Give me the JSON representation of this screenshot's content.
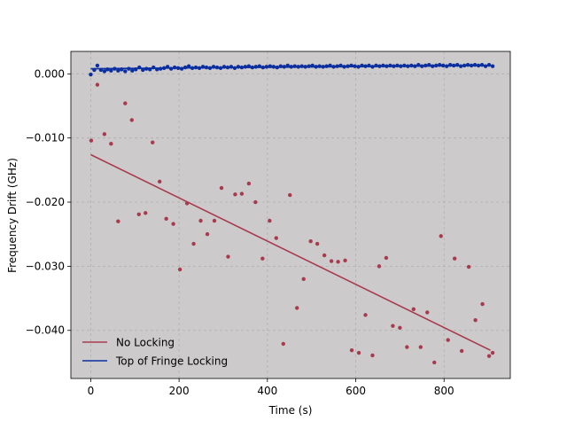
{
  "chart_data": {
    "type": "scatter",
    "title": "",
    "xlabel": "Time (s)",
    "ylabel": "Frequency Drift (GHz)",
    "xlim": [
      -45,
      950
    ],
    "ylim": [
      -0.0475,
      0.0035
    ],
    "x_ticks": [
      0,
      200,
      400,
      600,
      800
    ],
    "x_tick_labels": [
      "0",
      "200",
      "400",
      "600",
      "800"
    ],
    "y_ticks": [
      0.0,
      -0.01,
      -0.02,
      -0.03,
      -0.04
    ],
    "y_tick_labels": [
      "0.000",
      "−0.010",
      "−0.020",
      "−0.030",
      "−0.040"
    ],
    "grid": true,
    "background": "#cdcacb",
    "legend_position": "lower-left",
    "series": [
      {
        "name": "No Locking",
        "color": "#a83a4e",
        "fit": {
          "x": [
            0,
            905
          ],
          "y": [
            -0.0126,
            -0.0431
          ]
        },
        "points": [
          [
            1,
            -0.0104
          ],
          [
            15,
            -0.0017
          ],
          [
            31,
            -0.0094
          ],
          [
            46,
            -0.0109
          ],
          [
            62,
            -0.023
          ],
          [
            78,
            -0.0046
          ],
          [
            93,
            -0.0072
          ],
          [
            109,
            -0.0219
          ],
          [
            124,
            -0.0217
          ],
          [
            140,
            -0.0107
          ],
          [
            156,
            -0.0168
          ],
          [
            171,
            -0.0226
          ],
          [
            187,
            -0.0234
          ],
          [
            202,
            -0.0305
          ],
          [
            218,
            -0.0202
          ],
          [
            233,
            -0.0265
          ],
          [
            249,
            -0.0229
          ],
          [
            264,
            -0.025
          ],
          [
            280,
            -0.0229
          ],
          [
            296,
            -0.0178
          ],
          [
            311,
            -0.0285
          ],
          [
            327,
            -0.0188
          ],
          [
            342,
            -0.0187
          ],
          [
            358,
            -0.0171
          ],
          [
            373,
            -0.02
          ],
          [
            389,
            -0.0288
          ],
          [
            405,
            -0.0229
          ],
          [
            420,
            -0.0256
          ],
          [
            436,
            -0.0421
          ],
          [
            451,
            -0.0189
          ],
          [
            467,
            -0.0365
          ],
          [
            482,
            -0.032
          ],
          [
            498,
            -0.0261
          ],
          [
            513,
            -0.0265
          ],
          [
            529,
            -0.0283
          ],
          [
            545,
            -0.0292
          ],
          [
            560,
            -0.0293
          ],
          [
            576,
            -0.0291
          ],
          [
            591,
            -0.0431
          ],
          [
            607,
            -0.0435
          ],
          [
            622,
            -0.0376
          ],
          [
            638,
            -0.0439
          ],
          [
            653,
            -0.03
          ],
          [
            669,
            -0.0287
          ],
          [
            684,
            -0.0393
          ],
          [
            700,
            -0.0396
          ],
          [
            716,
            -0.0426
          ],
          [
            731,
            -0.0367
          ],
          [
            747,
            -0.0426
          ],
          [
            762,
            -0.0372
          ],
          [
            778,
            -0.045
          ],
          [
            793,
            -0.0253
          ],
          [
            809,
            -0.0415
          ],
          [
            824,
            -0.0288
          ],
          [
            840,
            -0.0432
          ],
          [
            856,
            -0.0301
          ],
          [
            871,
            -0.0384
          ],
          [
            887,
            -0.0359
          ],
          [
            902,
            -0.044
          ],
          [
            910,
            -0.0435
          ]
        ]
      },
      {
        "name": "Top of Fringe Locking",
        "color": "#0b2fa0",
        "fit": {
          "x": [
            0,
            905
          ],
          "y": [
            0.0008,
            0.0013
          ]
        },
        "points": [
          [
            0,
            -0.0001
          ],
          [
            8,
            0.0006
          ],
          [
            15,
            0.0013
          ],
          [
            23,
            0.0006
          ],
          [
            31,
            0.0004
          ],
          [
            38,
            0.0007
          ],
          [
            46,
            0.0005
          ],
          [
            54,
            0.0008
          ],
          [
            62,
            0.0005
          ],
          [
            70,
            0.0007
          ],
          [
            78,
            0.0004
          ],
          [
            86,
            0.0008
          ],
          [
            94,
            0.0005
          ],
          [
            102,
            0.0007
          ],
          [
            110,
            0.001
          ],
          [
            118,
            0.0006
          ],
          [
            126,
            0.0008
          ],
          [
            134,
            0.0007
          ],
          [
            142,
            0.001
          ],
          [
            150,
            0.0007
          ],
          [
            158,
            0.0008
          ],
          [
            166,
            0.0009
          ],
          [
            174,
            0.0011
          ],
          [
            182,
            0.0008
          ],
          [
            190,
            0.001
          ],
          [
            198,
            0.0009
          ],
          [
            206,
            0.0008
          ],
          [
            214,
            0.001
          ],
          [
            222,
            0.0012
          ],
          [
            230,
            0.0009
          ],
          [
            238,
            0.001
          ],
          [
            246,
            0.0009
          ],
          [
            254,
            0.0011
          ],
          [
            262,
            0.001
          ],
          [
            270,
            0.0009
          ],
          [
            278,
            0.0011
          ],
          [
            286,
            0.001
          ],
          [
            294,
            0.0009
          ],
          [
            302,
            0.0011
          ],
          [
            310,
            0.001
          ],
          [
            318,
            0.0011
          ],
          [
            326,
            0.0009
          ],
          [
            334,
            0.0011
          ],
          [
            342,
            0.001
          ],
          [
            350,
            0.0011
          ],
          [
            358,
            0.0012
          ],
          [
            366,
            0.001
          ],
          [
            374,
            0.0011
          ],
          [
            382,
            0.0012
          ],
          [
            390,
            0.001
          ],
          [
            398,
            0.0011
          ],
          [
            406,
            0.0012
          ],
          [
            414,
            0.0011
          ],
          [
            422,
            0.001
          ],
          [
            430,
            0.0012
          ],
          [
            438,
            0.0011
          ],
          [
            446,
            0.0013
          ],
          [
            454,
            0.0011
          ],
          [
            462,
            0.0012
          ],
          [
            470,
            0.0011
          ],
          [
            478,
            0.0012
          ],
          [
            486,
            0.0011
          ],
          [
            494,
            0.0012
          ],
          [
            502,
            0.0013
          ],
          [
            510,
            0.0011
          ],
          [
            518,
            0.0012
          ],
          [
            526,
            0.0011
          ],
          [
            534,
            0.0012
          ],
          [
            542,
            0.0013
          ],
          [
            550,
            0.0011
          ],
          [
            558,
            0.0012
          ],
          [
            566,
            0.0013
          ],
          [
            574,
            0.0011
          ],
          [
            582,
            0.0012
          ],
          [
            590,
            0.0013
          ],
          [
            598,
            0.0012
          ],
          [
            606,
            0.0011
          ],
          [
            614,
            0.0013
          ],
          [
            622,
            0.0012
          ],
          [
            630,
            0.0013
          ],
          [
            638,
            0.0011
          ],
          [
            646,
            0.0013
          ],
          [
            654,
            0.0012
          ],
          [
            662,
            0.0013
          ],
          [
            670,
            0.0012
          ],
          [
            678,
            0.0013
          ],
          [
            686,
            0.0012
          ],
          [
            694,
            0.0013
          ],
          [
            702,
            0.0012
          ],
          [
            710,
            0.0013
          ],
          [
            718,
            0.0012
          ],
          [
            726,
            0.0013
          ],
          [
            734,
            0.0012
          ],
          [
            742,
            0.0014
          ],
          [
            750,
            0.0012
          ],
          [
            758,
            0.0013
          ],
          [
            766,
            0.0014
          ],
          [
            774,
            0.0012
          ],
          [
            782,
            0.0013
          ],
          [
            790,
            0.0014
          ],
          [
            798,
            0.0013
          ],
          [
            806,
            0.0012
          ],
          [
            814,
            0.0014
          ],
          [
            822,
            0.0013
          ],
          [
            830,
            0.0014
          ],
          [
            838,
            0.0012
          ],
          [
            846,
            0.0013
          ],
          [
            854,
            0.0014
          ],
          [
            862,
            0.0013
          ],
          [
            870,
            0.0014
          ],
          [
            878,
            0.0013
          ],
          [
            886,
            0.0014
          ],
          [
            894,
            0.0012
          ],
          [
            902,
            0.0014
          ],
          [
            910,
            0.0012
          ]
        ]
      }
    ]
  }
}
